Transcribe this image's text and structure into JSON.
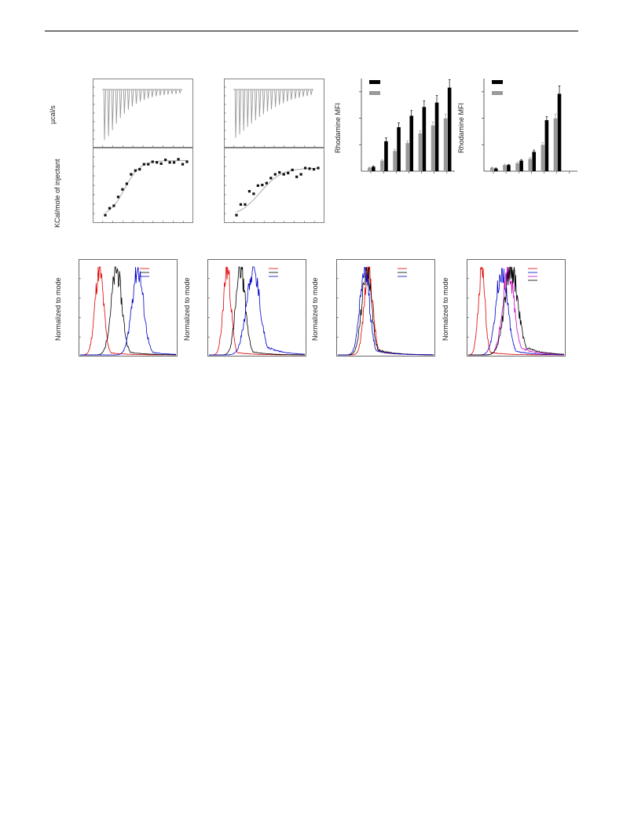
{
  "page": {
    "labels": {
      "itc_heat_rate": "µcal/s",
      "itc_enthalpy": "KCal/mole of injectant",
      "flow_mfi": "Rhodamine MFI",
      "flow_norm": "Normalized to mode"
    }
  },
  "chart_data": [
    {
      "id": "itc-raw-1",
      "type": "line",
      "ylabel": "µcal/s",
      "n_injections": 20,
      "peak_depth": [
        0.92,
        0.85,
        0.74,
        0.62,
        0.52,
        0.44,
        0.37,
        0.31,
        0.26,
        0.22,
        0.19,
        0.16,
        0.14,
        0.12,
        0.11,
        0.1,
        0.09,
        0.08,
        0.08,
        0.07
      ]
    },
    {
      "id": "itc-fit-1",
      "type": "scatter",
      "ylabel": "KCal/mole of injectant",
      "x": [
        1,
        2,
        3,
        4,
        5,
        6,
        7,
        8,
        9,
        10,
        11,
        12,
        13,
        14,
        15,
        16,
        17,
        18,
        19,
        20
      ],
      "y": [
        0.05,
        0.16,
        0.2,
        0.34,
        0.46,
        0.55,
        0.7,
        0.76,
        0.78,
        0.86,
        0.86,
        0.9,
        0.89,
        0.87,
        0.93,
        0.89,
        0.89,
        0.94,
        0.86,
        0.9
      ],
      "fit": true
    },
    {
      "id": "itc-raw-2",
      "type": "line",
      "n_injections": 20,
      "peak_depth": [
        0.88,
        0.82,
        0.75,
        0.68,
        0.62,
        0.56,
        0.5,
        0.45,
        0.4,
        0.36,
        0.32,
        0.28,
        0.25,
        0.22,
        0.19,
        0.17,
        0.15,
        0.13,
        0.12,
        0.1
      ]
    },
    {
      "id": "itc-fit-2",
      "type": "scatter",
      "x": [
        1,
        2,
        3,
        4,
        5,
        6,
        7,
        8,
        9,
        10,
        11,
        12,
        13,
        14,
        15,
        16,
        17,
        18,
        19,
        20
      ],
      "y": [
        0.05,
        0.22,
        0.22,
        0.43,
        0.39,
        0.52,
        0.53,
        0.56,
        0.64,
        0.7,
        0.73,
        0.7,
        0.72,
        0.77,
        0.66,
        0.7,
        0.8,
        0.79,
        0.78,
        0.8
      ],
      "fit": true
    },
    {
      "id": "bar-1",
      "type": "bar",
      "ylabel": "Rhodamine MFI",
      "ylim": [
        0,
        100
      ],
      "legend": "top-left",
      "groups": 7,
      "series": [
        {
          "color": "#999999",
          "values": [
            4,
            12,
            23,
            32,
            43,
            52,
            60
          ],
          "errors": [
            0.6,
            1.2,
            2,
            2.5,
            3,
            4,
            5
          ]
        },
        {
          "color": "#000000",
          "values": [
            5,
            34,
            50,
            63,
            73,
            78,
            95
          ],
          "errors": [
            1,
            4,
            5,
            6,
            7,
            8,
            9
          ]
        }
      ]
    },
    {
      "id": "bar-2",
      "type": "bar",
      "ylabel": "Rhodamine MFI",
      "ylim": [
        0,
        100
      ],
      "legend": "top-left",
      "groups": 7,
      "series": [
        {
          "color": "#999999",
          "values": [
            4,
            7,
            9,
            14,
            30,
            60,
            0
          ],
          "errors": [
            0.5,
            1,
            1,
            1.5,
            2.5,
            5,
            0
          ]
        },
        {
          "color": "#000000",
          "values": [
            3,
            7,
            12,
            22,
            58,
            88,
            0
          ],
          "errors": [
            0.6,
            0.8,
            1.2,
            2,
            4,
            9,
            0
          ]
        }
      ]
    },
    {
      "id": "hist-1",
      "type": "line",
      "ylabel": "Normalized to mode",
      "legend": "top-right",
      "series": [
        {
          "color": "#e00000",
          "center": 0.2,
          "width": 0.045,
          "tail": 0.2
        },
        {
          "color": "#000000",
          "center": 0.38,
          "width": 0.055,
          "tail": 0.3
        },
        {
          "color": "#0000cc",
          "center": 0.6,
          "width": 0.06,
          "tail": 0.3
        }
      ]
    },
    {
      "id": "hist-2",
      "type": "line",
      "ylabel": "Normalized to mode",
      "legend": "top-right",
      "series": [
        {
          "color": "#e00000",
          "center": 0.19,
          "width": 0.04,
          "tail": 0.2
        },
        {
          "color": "#000000",
          "center": 0.33,
          "width": 0.05,
          "tail": 0.3
        },
        {
          "color": "#0000cc",
          "center": 0.46,
          "width": 0.07,
          "tail": 0.9
        }
      ]
    },
    {
      "id": "hist-3",
      "type": "line",
      "ylabel": "Normalized to mode",
      "legend": "top-right",
      "series": [
        {
          "color": "#e00000",
          "center": 0.32,
          "width": 0.045,
          "tail": 0.3
        },
        {
          "color": "#000000",
          "center": 0.3,
          "width": 0.05,
          "tail": 0.5
        },
        {
          "color": "#0000cc",
          "center": 0.28,
          "width": 0.05,
          "tail": 0.4
        }
      ]
    },
    {
      "id": "hist-4",
      "type": "line",
      "ylabel": "Normalized to mode",
      "legend": "top-right",
      "series": [
        {
          "color": "#e00000",
          "center": 0.14,
          "width": 0.035,
          "tail": 0.2
        },
        {
          "color": "#0000cc",
          "center": 0.35,
          "width": 0.06,
          "tail": 0.4
        },
        {
          "color": "#cc00cc",
          "center": 0.42,
          "width": 0.06,
          "tail": 0.7
        },
        {
          "color": "#000000",
          "center": 0.45,
          "width": 0.07,
          "tail": 0.9
        }
      ]
    }
  ]
}
